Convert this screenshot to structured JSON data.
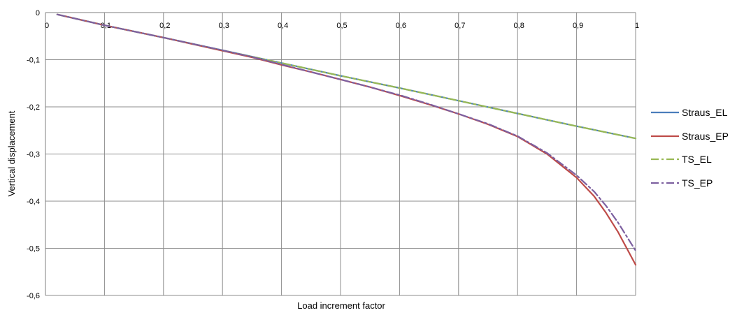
{
  "chart_data": {
    "type": "line",
    "xlabel": "Load increment factor",
    "ylabel": "Vertical displacement",
    "xlim": [
      0,
      1
    ],
    "ylim": [
      -0.6,
      0
    ],
    "x_ticks": [
      0,
      0.1,
      0.2,
      0.3,
      0.4,
      0.5,
      0.6,
      0.7,
      0.8,
      0.9,
      1
    ],
    "x_tick_labels": [
      "0",
      "0,1",
      "0,2",
      "0,3",
      "0,4",
      "0,5",
      "0,6",
      "0,7",
      "0,8",
      "0,9",
      "1"
    ],
    "y_ticks": [
      0,
      -0.1,
      -0.2,
      -0.3,
      -0.4,
      -0.5,
      -0.6
    ],
    "y_tick_labels": [
      "0",
      "-0,1",
      "-0,2",
      "-0,3",
      "-0,4",
      "-0,5",
      "-0,6"
    ],
    "grid": true,
    "legend_position": "right",
    "series": [
      {
        "name": "Straus_EL",
        "color": "#4a7ebb",
        "dash": "solid",
        "x": [
          0.02,
          0.1,
          0.2,
          0.3,
          0.4,
          0.5,
          0.6,
          0.7,
          0.8,
          0.9,
          1.0
        ],
        "y": [
          -0.004,
          -0.027,
          -0.053,
          -0.08,
          -0.107,
          -0.134,
          -0.16,
          -0.187,
          -0.214,
          -0.241,
          -0.267
        ]
      },
      {
        "name": "Straus_EP",
        "color": "#be4b48",
        "dash": "solid",
        "x": [
          0.02,
          0.1,
          0.2,
          0.3,
          0.35,
          0.4,
          0.45,
          0.5,
          0.55,
          0.6,
          0.65,
          0.7,
          0.75,
          0.8,
          0.85,
          0.9,
          0.93,
          0.95,
          0.97,
          1.0
        ],
        "y": [
          -0.004,
          -0.027,
          -0.053,
          -0.081,
          -0.095,
          -0.111,
          -0.126,
          -0.142,
          -0.158,
          -0.176,
          -0.195,
          -0.215,
          -0.237,
          -0.263,
          -0.3,
          -0.35,
          -0.39,
          -0.425,
          -0.465,
          -0.535
        ]
      },
      {
        "name": "TS_EL",
        "color": "#98b954",
        "dash": "dashdot",
        "x": [
          0.02,
          0.1,
          0.2,
          0.3,
          0.4,
          0.5,
          0.6,
          0.7,
          0.8,
          0.9,
          1.0
        ],
        "y": [
          -0.004,
          -0.027,
          -0.053,
          -0.08,
          -0.107,
          -0.134,
          -0.16,
          -0.187,
          -0.214,
          -0.241,
          -0.267
        ]
      },
      {
        "name": "TS_EP",
        "color": "#7d60a0",
        "dash": "dashdot",
        "x": [
          0.02,
          0.1,
          0.2,
          0.3,
          0.35,
          0.4,
          0.45,
          0.5,
          0.55,
          0.6,
          0.65,
          0.7,
          0.75,
          0.8,
          0.85,
          0.9,
          0.93,
          0.95,
          0.97,
          1.0
        ],
        "y": [
          -0.004,
          -0.027,
          -0.053,
          -0.08,
          -0.094,
          -0.11,
          -0.126,
          -0.142,
          -0.158,
          -0.175,
          -0.194,
          -0.215,
          -0.236,
          -0.262,
          -0.298,
          -0.345,
          -0.38,
          -0.41,
          -0.445,
          -0.505
        ]
      }
    ]
  }
}
